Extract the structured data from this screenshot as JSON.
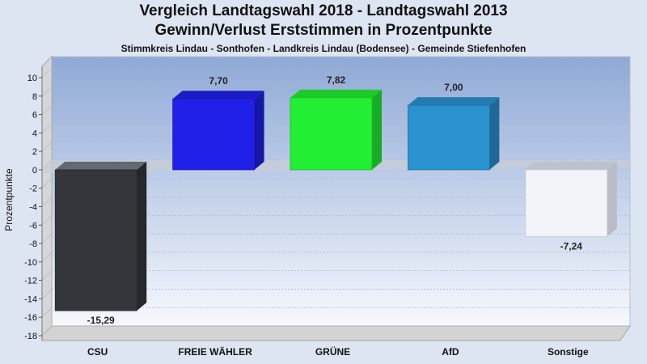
{
  "title": "Vergleich Landtagswahl 2018 - Landtagswahl 2013",
  "subtitle": "Gewinn/Verlust Erststimmen in Prozentpunkte",
  "subsubtitle": "Stimmkreis Lindau - Sonthofen - Landkreis Lindau (Bodensee) - Gemeinde Stiefenhofen",
  "chart_data": {
    "type": "bar",
    "title": "Vergleich Landtagswahl 2018 - Landtagswahl 2013",
    "subtitle": "Gewinn/Verlust Erststimmen in Prozentpunkte",
    "ylabel": "Prozentpunkte",
    "xlabel": "",
    "ylim": [
      -18,
      10
    ],
    "yticks": [
      10,
      8,
      6,
      4,
      2,
      0,
      -2,
      -4,
      -6,
      -8,
      -10,
      -12,
      -14,
      -16,
      -18
    ],
    "grid": true,
    "categories": [
      "CSU",
      "FREIE WÄHLER",
      "GRÜNE",
      "AfD",
      "Sonstige"
    ],
    "values": [
      -15.29,
      7.7,
      7.82,
      7.0,
      -7.24
    ],
    "value_labels": [
      "-15,29",
      "7,70",
      "7,82",
      "7,00",
      "-7,24"
    ],
    "colors": [
      "#33363b",
      "#2020e8",
      "#22ee33",
      "#2a92cf",
      "#f2f4fa"
    ]
  }
}
